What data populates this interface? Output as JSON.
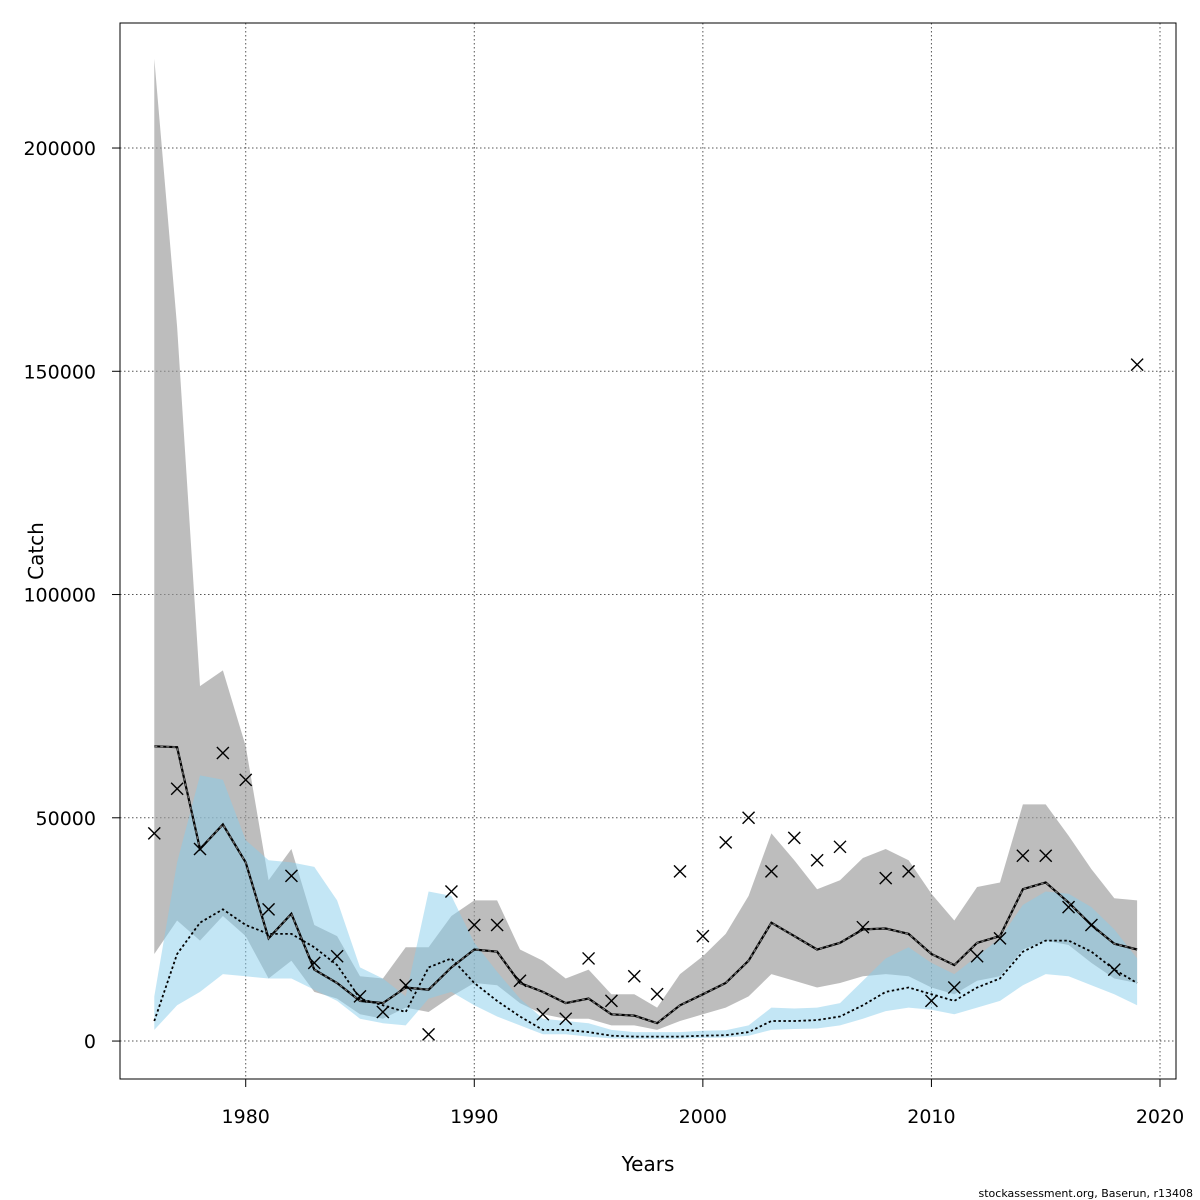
{
  "footer": {
    "credit": "stockassessment.org, Baserun, r13408"
  },
  "chart_data": {
    "type": "line",
    "xlabel": "Years",
    "ylabel": "Catch",
    "xlim": [
      1974.5,
      2020.7
    ],
    "ylim": [
      -8500,
      228000
    ],
    "x_ticks": [
      1980,
      1990,
      2000,
      2010,
      2020
    ],
    "y_ticks": [
      0,
      50000,
      100000,
      150000,
      200000
    ],
    "grid": true,
    "colors": {
      "grey_band": "#9a9a9a",
      "blue_band": "#87ceeb",
      "line": "#000000"
    },
    "years": [
      1976,
      1977,
      1978,
      1979,
      1980,
      1981,
      1982,
      1983,
      1984,
      1985,
      1986,
      1987,
      1988,
      1989,
      1990,
      1991,
      1992,
      1993,
      1994,
      1995,
      1996,
      1997,
      1998,
      1999,
      2000,
      2001,
      2002,
      2003,
      2004,
      2005,
      2006,
      2007,
      2008,
      2009,
      2010,
      2011,
      2012,
      2013,
      2014,
      2015,
      2016,
      2017,
      2018,
      2019
    ],
    "series": [
      {
        "style": "solid-dashed",
        "band": "grey",
        "values": [
          66000,
          65800,
          43000,
          48500,
          40000,
          23000,
          28500,
          16000,
          13000,
          9000,
          8500,
          12000,
          11500,
          16500,
          20500,
          20000,
          13000,
          11000,
          8500,
          9500,
          6000,
          5700,
          4000,
          8000,
          10500,
          13000,
          18000,
          26500,
          23500,
          20500,
          22000,
          25000,
          25200,
          24000,
          19500,
          17000,
          22000,
          23500,
          34000,
          35500,
          31000,
          26000,
          21800,
          20500
        ],
        "lower": [
          19500,
          27000,
          22500,
          28000,
          23500,
          14000,
          18000,
          11000,
          9500,
          6000,
          5000,
          7500,
          6500,
          10000,
          13000,
          12500,
          8500,
          6000,
          5000,
          5000,
          3500,
          3500,
          2500,
          4500,
          6000,
          7500,
          10000,
          15000,
          13500,
          12000,
          13000,
          14500,
          15000,
          14500,
          12000,
          10500,
          13500,
          14500,
          20500,
          22500,
          21500,
          17500,
          14000,
          13000
        ],
        "upper": [
          220000,
          160000,
          79500,
          83000,
          66000,
          36000,
          43000,
          26000,
          23500,
          14500,
          14000,
          21000,
          21000,
          28000,
          31500,
          31500,
          20500,
          18000,
          14000,
          16000,
          10500,
          10500,
          7500,
          15000,
          19000,
          24000,
          32500,
          46500,
          40500,
          34000,
          36000,
          41000,
          43000,
          40500,
          33000,
          27000,
          34500,
          35500,
          53000,
          53000,
          46000,
          38500,
          32000,
          31500
        ]
      },
      {
        "style": "dotted",
        "band": "blue",
        "values": [
          4500,
          19500,
          26500,
          29500,
          26000,
          24000,
          24000,
          21000,
          17000,
          9500,
          8000,
          6500,
          16500,
          18500,
          13000,
          9000,
          5500,
          2500,
          2500,
          2000,
          1200,
          1000,
          1000,
          1000,
          1200,
          1300,
          2000,
          4500,
          4500,
          4700,
          5500,
          8000,
          11000,
          12000,
          10500,
          9000,
          12000,
          14000,
          20000,
          22500,
          22500,
          20000,
          16000,
          13000
        ],
        "lower": [
          2500,
          8000,
          11000,
          15000,
          14500,
          14000,
          14000,
          11500,
          9000,
          5000,
          4000,
          3500,
          9500,
          11000,
          8000,
          5500,
          3500,
          1500,
          1500,
          1000,
          600,
          500,
          500,
          500,
          700,
          800,
          1200,
          2500,
          2700,
          2800,
          3500,
          5000,
          6700,
          7500,
          7000,
          6000,
          7500,
          9000,
          12500,
          15000,
          14500,
          12500,
          10500,
          8000
        ],
        "upper": [
          10000,
          40000,
          59500,
          58500,
          45000,
          40500,
          40000,
          39000,
          31500,
          16500,
          14000,
          10000,
          33500,
          32500,
          22000,
          15500,
          9500,
          5000,
          4500,
          4000,
          2500,
          2000,
          2000,
          2000,
          2300,
          2400,
          3500,
          7500,
          7300,
          7500,
          8500,
          13500,
          18500,
          21000,
          17500,
          15000,
          19000,
          23000,
          30500,
          33500,
          33000,
          30000,
          25000,
          18500
        ]
      }
    ],
    "observed": {
      "marker": "x",
      "values": [
        46500,
        56500,
        43000,
        64500,
        58500,
        29500,
        37000,
        17500,
        19000,
        10000,
        6500,
        12500,
        1500,
        33500,
        26000,
        26000,
        13500,
        6000,
        5000,
        18500,
        9000,
        14500,
        10500,
        38000,
        23500,
        44500,
        50000,
        38000,
        45500,
        40500,
        43500,
        25500,
        36500,
        38000,
        9000,
        12000,
        19000,
        23000,
        41500,
        41500,
        30000,
        26000,
        16000,
        151500
      ]
    }
  }
}
